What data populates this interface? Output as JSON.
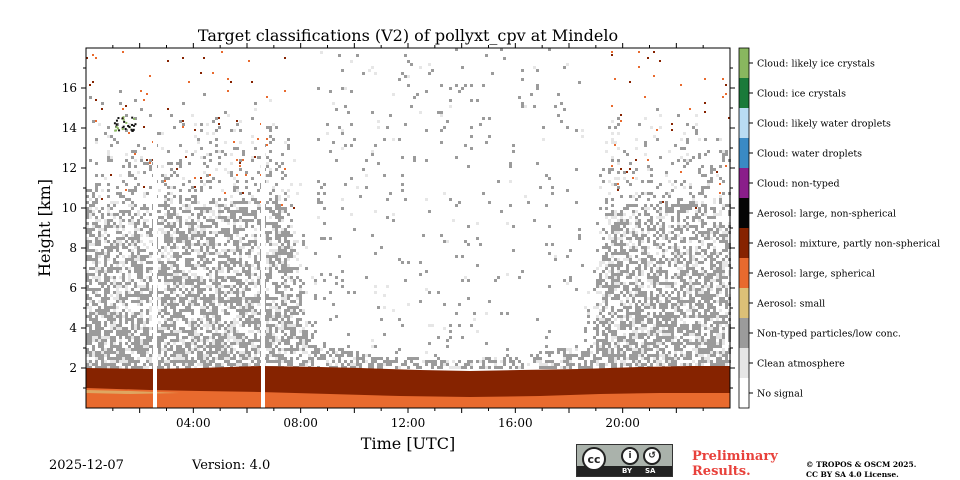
{
  "chart_data": {
    "type": "heatmap",
    "title": "Target classifications (V2) of pollyxt_cpv at Mindelo",
    "xlabel": "Time [UTC]",
    "ylabel": "Height [km]",
    "xlim": [
      0,
      24
    ],
    "ylim": [
      0,
      18
    ],
    "x_ticks": [
      {
        "value": 4,
        "label": "04:00"
      },
      {
        "value": 8,
        "label": "08:00"
      },
      {
        "value": 12,
        "label": "12:00"
      },
      {
        "value": 16,
        "label": "16:00"
      },
      {
        "value": 20,
        "label": "20:00"
      }
    ],
    "y_ticks": [
      {
        "value": 2,
        "label": "2"
      },
      {
        "value": 4,
        "label": "4"
      },
      {
        "value": 6,
        "label": "6"
      },
      {
        "value": 8,
        "label": "8"
      },
      {
        "value": 10,
        "label": "10"
      },
      {
        "value": 12,
        "label": "12"
      },
      {
        "value": 14,
        "label": "14"
      },
      {
        "value": 16,
        "label": "16"
      }
    ],
    "legend": [
      {
        "label": "Cloud: likely ice crystals",
        "color": "#89b75f"
      },
      {
        "label": "Cloud: ice crystals",
        "color": "#1a7a3a"
      },
      {
        "label": "Cloud: likely water droplets",
        "color": "#b9dcf3"
      },
      {
        "label": "Cloud: water droplets",
        "color": "#3a8ac4"
      },
      {
        "label": "Cloud: non-typed",
        "color": "#8a1e8a"
      },
      {
        "label": "Aerosol: large, non-spherical",
        "color": "#050505"
      },
      {
        "label": "Aerosol: mixture, partly non-spherical",
        "color": "#862300"
      },
      {
        "label": "Aerosol: large, spherical",
        "color": "#e86a2e"
      },
      {
        "label": "Aerosol: small",
        "color": "#dcc077"
      },
      {
        "label": "Non-typed particles/low conc.",
        "color": "#9b9b9b"
      },
      {
        "label": "Clean atmosphere",
        "color": "#e6e6e6"
      },
      {
        "label": "No signal",
        "color": "#ffffff"
      }
    ],
    "layers": [
      {
        "class": "Aerosol: large, spherical",
        "from_km": 0.0,
        "to_km": 0.8
      },
      {
        "class": "Aerosol: mixture, partly non-spherical",
        "from_km": 0.8,
        "to_km": 2.0
      },
      {
        "class": "Non-typed particles/low conc.",
        "from_km": 2.0,
        "to_km": 10.0
      }
    ]
  },
  "footer": {
    "date": "2025-12-07",
    "version": "Version: 4.0",
    "preliminary_line1": "Preliminary",
    "preliminary_line2": "Results.",
    "copyright_line1": "© TROPOS & OSCM 2025.",
    "copyright_line2": "CC BY SA 4.0 License.",
    "cc_badge": "cc",
    "cc_by": "BY",
    "cc_sa": "SA"
  }
}
